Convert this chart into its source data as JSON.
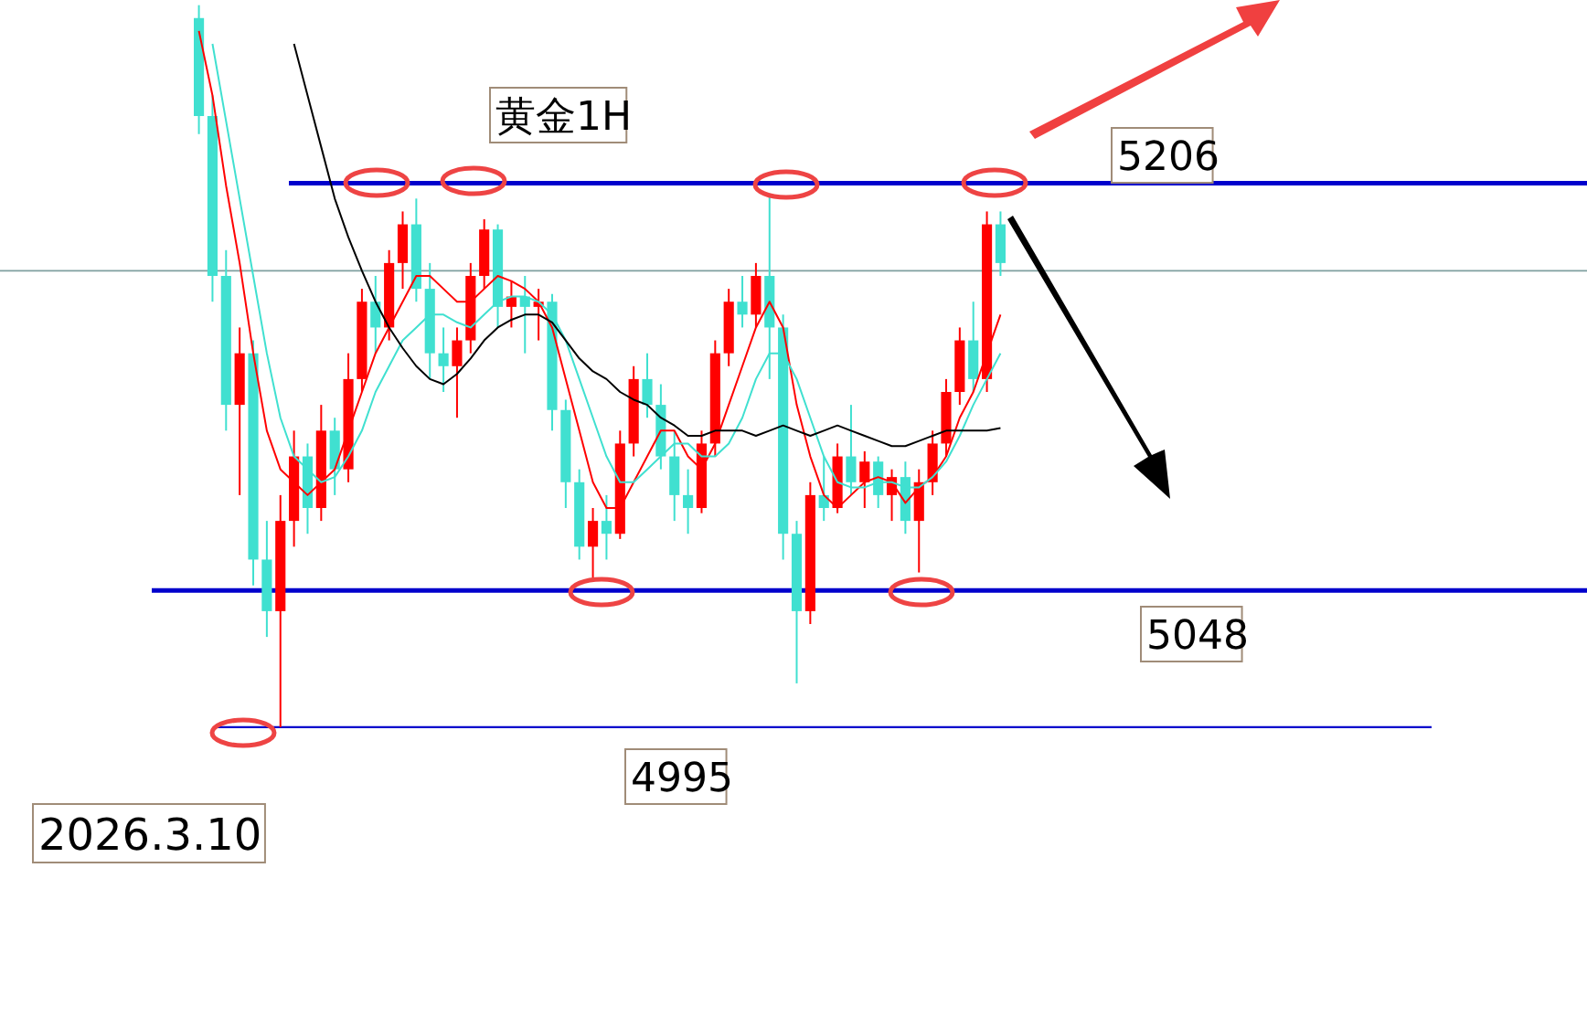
{
  "chart_data": {
    "type": "candlestick",
    "title": "黄金1H",
    "categories": [
      null,
      null,
      null,
      null,
      null,
      null,
      null,
      null,
      null,
      null,
      null,
      null,
      null,
      null,
      null,
      null,
      null,
      null,
      null,
      null,
      null,
      null,
      null,
      null,
      null,
      null,
      null,
      null,
      null,
      null,
      null,
      null,
      null,
      null,
      null,
      null,
      null,
      null,
      null,
      null,
      null,
      null,
      null,
      null,
      null,
      null,
      null,
      null,
      null,
      null,
      null,
      null,
      null,
      null,
      null,
      null,
      null,
      null,
      null,
      null
    ],
    "ylim": [
      4883,
      5277
    ],
    "ohlc": [
      [
        5270,
        5275,
        5225,
        5232
      ],
      [
        5232,
        5240,
        5160,
        5170
      ],
      [
        5170,
        5180,
        5110,
        5120
      ],
      [
        5120,
        5150,
        5085,
        5140
      ],
      [
        5140,
        5145,
        5050,
        5060
      ],
      [
        5060,
        5075,
        5030,
        5040
      ],
      [
        5040,
        5085,
        4995,
        5075
      ],
      [
        5075,
        5110,
        5065,
        5100
      ],
      [
        5100,
        5105,
        5070,
        5080
      ],
      [
        5080,
        5120,
        5075,
        5110
      ],
      [
        5110,
        5115,
        5085,
        5095
      ],
      [
        5095,
        5140,
        5090,
        5130
      ],
      [
        5130,
        5165,
        5125,
        5160
      ],
      [
        5160,
        5170,
        5140,
        5150
      ],
      [
        5150,
        5180,
        5145,
        5175
      ],
      [
        5175,
        5195,
        5165,
        5190
      ],
      [
        5190,
        5200,
        5160,
        5165
      ],
      [
        5165,
        5175,
        5130,
        5140
      ],
      [
        5140,
        5150,
        5125,
        5135
      ],
      [
        5135,
        5150,
        5115,
        5145
      ],
      [
        5145,
        5175,
        5140,
        5170
      ],
      [
        5170,
        5192,
        5165,
        5188
      ],
      [
        5188,
        5190,
        5150,
        5158
      ],
      [
        5158,
        5168,
        5150,
        5162
      ],
      [
        5162,
        5170,
        5140,
        5158
      ],
      [
        5158,
        5165,
        5145,
        5160
      ],
      [
        5160,
        5163,
        5110,
        5118
      ],
      [
        5118,
        5122,
        5080,
        5090
      ],
      [
        5090,
        5095,
        5060,
        5065
      ],
      [
        5065,
        5080,
        5052,
        5075
      ],
      [
        5075,
        5085,
        5060,
        5070
      ],
      [
        5070,
        5110,
        5068,
        5105
      ],
      [
        5105,
        5135,
        5100,
        5130
      ],
      [
        5130,
        5140,
        5115,
        5120
      ],
      [
        5120,
        5128,
        5095,
        5100
      ],
      [
        5100,
        5110,
        5075,
        5085
      ],
      [
        5085,
        5095,
        5070,
        5080
      ],
      [
        5080,
        5110,
        5078,
        5105
      ],
      [
        5105,
        5145,
        5100,
        5140
      ],
      [
        5140,
        5165,
        5135,
        5160
      ],
      [
        5160,
        5170,
        5150,
        5155
      ],
      [
        5155,
        5175,
        5150,
        5170
      ],
      [
        5170,
        5202,
        5130,
        5150
      ],
      [
        5150,
        5155,
        5060,
        5070
      ],
      [
        5070,
        5075,
        5012,
        5040
      ],
      [
        5040,
        5090,
        5035,
        5085
      ],
      [
        5085,
        5100,
        5075,
        5080
      ],
      [
        5080,
        5105,
        5078,
        5100
      ],
      [
        5100,
        5120,
        5085,
        5090
      ],
      [
        5090,
        5102,
        5080,
        5098
      ],
      [
        5098,
        5100,
        5080,
        5085
      ],
      [
        5085,
        5095,
        5075,
        5092
      ],
      [
        5092,
        5098,
        5070,
        5075
      ],
      [
        5075,
        5095,
        5055,
        5090
      ],
      [
        5090,
        5110,
        5085,
        5105
      ],
      [
        5105,
        5130,
        5100,
        5125
      ],
      [
        5125,
        5150,
        5120,
        5145
      ],
      [
        5145,
        5160,
        5125,
        5130
      ],
      [
        5130,
        5195,
        5125,
        5190
      ],
      [
        5190,
        5195,
        5170,
        5175
      ]
    ],
    "colors": [
      "#40e0d0",
      "#40e0d0",
      "#40e0d0",
      "#ff0000",
      "#40e0d0",
      "#40e0d0",
      "#ff0000",
      "#ff0000",
      "#40e0d0",
      "#ff0000",
      "#40e0d0",
      "#ff0000",
      "#ff0000",
      "#40e0d0",
      "#ff0000",
      "#ff0000",
      "#40e0d0",
      "#40e0d0",
      "#40e0d0",
      "#ff0000",
      "#ff0000",
      "#ff0000",
      "#40e0d0",
      "#ff0000",
      "#40e0d0",
      "#ff0000",
      "#40e0d0",
      "#40e0d0",
      "#40e0d0",
      "#ff0000",
      "#40e0d0",
      "#ff0000",
      "#ff0000",
      "#40e0d0",
      "#40e0d0",
      "#40e0d0",
      "#40e0d0",
      "#ff0000",
      "#ff0000",
      "#ff0000",
      "#40e0d0",
      "#ff0000",
      "#40e0d0",
      "#40e0d0",
      "#40e0d0",
      "#ff0000",
      "#40e0d0",
      "#ff0000",
      "#40e0d0",
      "#ff0000",
      "#40e0d0",
      "#ff0000",
      "#40e0d0",
      "#ff0000",
      "#ff0000",
      "#ff0000",
      "#ff0000",
      "#40e0d0",
      "#ff0000",
      "#40e0d0"
    ],
    "series": [
      {
        "type": "line",
        "color": "#ff0000",
        "values": [
          5265,
          5240,
          5205,
          5175,
          5140,
          5110,
          5095,
          5090,
          5085,
          5090,
          5095,
          5110,
          5125,
          5140,
          5150,
          5160,
          5170,
          5170,
          5165,
          5160,
          5160,
          5165,
          5170,
          5168,
          5165,
          5160,
          5150,
          5130,
          5110,
          5090,
          5080,
          5080,
          5090,
          5100,
          5110,
          5110,
          5100,
          5095,
          5105,
          5120,
          5135,
          5150,
          5160,
          5150,
          5120,
          5100,
          5085,
          5080,
          5085,
          5090,
          5092,
          5090,
          5082,
          5088,
          5092,
          5100,
          5115,
          5125,
          5140,
          5155
        ]
      },
      {
        "type": "line",
        "color": "#40e0d0",
        "values": [
          null,
          5260,
          5230,
          5200,
          5170,
          5140,
          5115,
          5100,
          5095,
          5090,
          5092,
          5100,
          5110,
          5125,
          5135,
          5145,
          5150,
          5155,
          5155,
          5152,
          5150,
          5155,
          5160,
          5162,
          5162,
          5160,
          5155,
          5145,
          5130,
          5115,
          5100,
          5090,
          5090,
          5095,
          5100,
          5105,
          5105,
          5100,
          5100,
          5105,
          5115,
          5130,
          5140,
          5140,
          5130,
          5115,
          5100,
          5090,
          5088,
          5088,
          5090,
          5090,
          5088,
          5088,
          5092,
          5098,
          5108,
          5120,
          5130,
          5140
        ]
      },
      {
        "type": "line",
        "color": "#000000",
        "values": [
          null,
          null,
          null,
          null,
          null,
          null,
          null,
          5260,
          5240,
          5220,
          5200,
          5185,
          5172,
          5160,
          5150,
          5142,
          5135,
          5130,
          5128,
          5132,
          5138,
          5145,
          5150,
          5153,
          5155,
          5155,
          5152,
          5145,
          5138,
          5133,
          5130,
          5125,
          5122,
          5120,
          5115,
          5112,
          5108,
          5108,
          5110,
          5110,
          5110,
          5108,
          5110,
          5112,
          5110,
          5108,
          5110,
          5112,
          5110,
          5108,
          5106,
          5104,
          5104,
          5106,
          5108,
          5110,
          5110,
          5110,
          5110,
          5111
        ]
      }
    ],
    "ref_lines": [
      {
        "axis": "y",
        "value": 5206,
        "label": "5206",
        "color": "#0000cc"
      },
      {
        "axis": "y",
        "value": 5048,
        "label": "5048",
        "color": "#0000cc"
      },
      {
        "axis": "y",
        "value": 4995,
        "label": "4995",
        "color": "#0000cc"
      },
      {
        "axis": "y",
        "value": 5172,
        "label": null,
        "color": "#7f9f9f"
      }
    ],
    "annotations": [
      "2026.3.10"
    ]
  }
}
